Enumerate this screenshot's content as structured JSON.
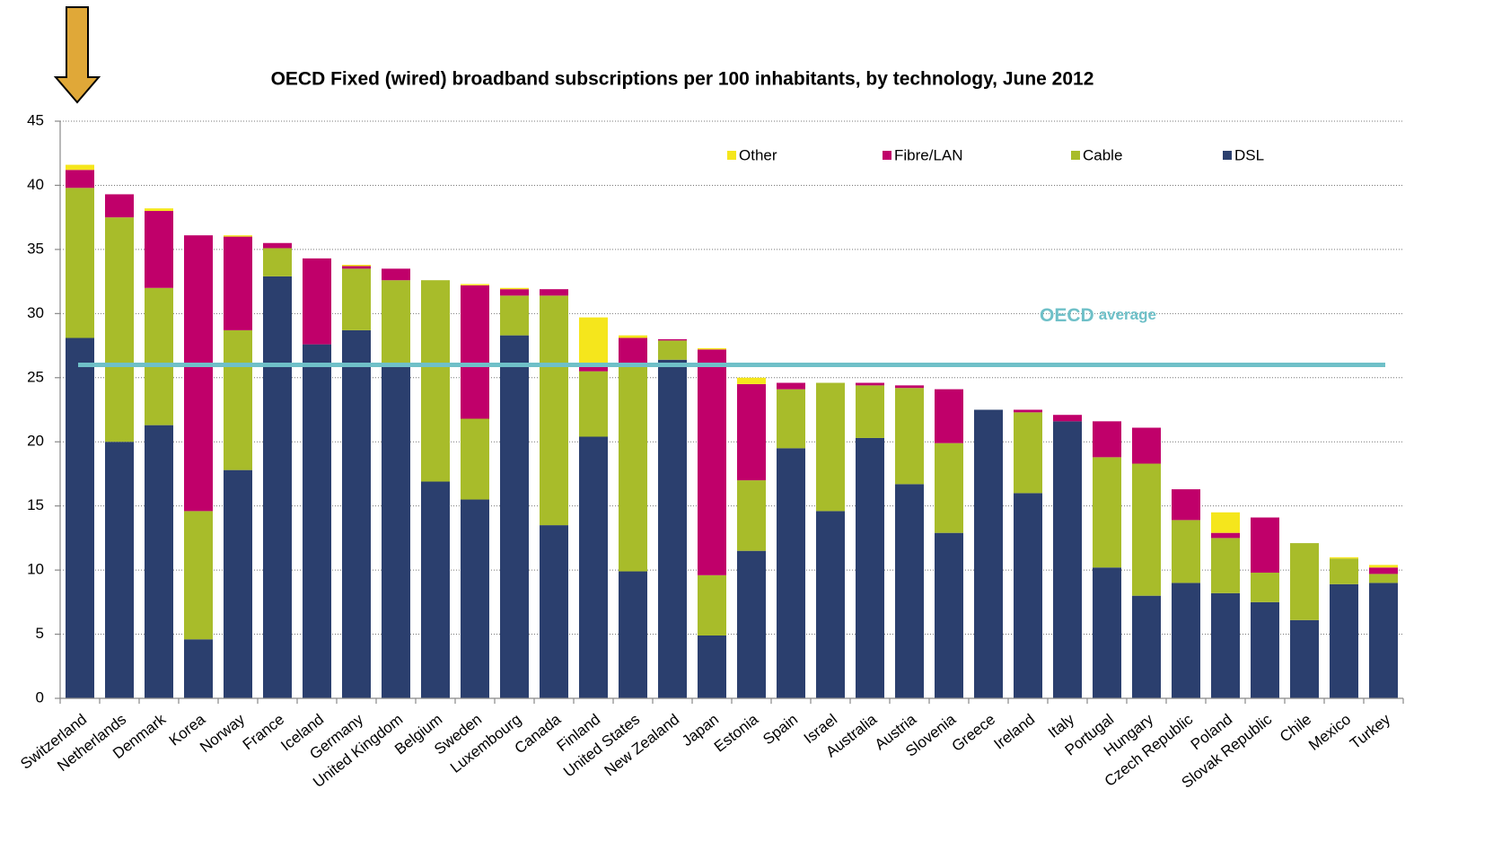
{
  "chart_data": {
    "type": "stacked_bar",
    "title": "OECD Fixed (wired) broadband subscriptions per 100 inhabitants, by technology, June 2012",
    "categories": [
      "Switzerland",
      "Netherlands",
      "Denmark",
      "Korea",
      "Norway",
      "France",
      "Iceland",
      "Germany",
      "United Kingdom",
      "Belgium",
      "Sweden",
      "Luxembourg",
      "Canada",
      "Finland",
      "United States",
      "New Zealand",
      "Japan",
      "Estonia",
      "Spain",
      "Israel",
      "Australia",
      "Austria",
      "Slovenia",
      "Greece",
      "Ireland",
      "Italy",
      "Portugal",
      "Hungary",
      "Czech Republic",
      "Poland",
      "Slovak Republic",
      "Chile",
      "Mexico",
      "Turkey"
    ],
    "series": [
      {
        "name": "DSL",
        "color": "#2b3f6e",
        "values": [
          28.1,
          20.0,
          21.3,
          4.6,
          17.8,
          32.9,
          27.6,
          28.7,
          26.0,
          16.9,
          15.5,
          28.3,
          13.5,
          20.4,
          9.9,
          26.4,
          4.9,
          11.5,
          19.5,
          14.6,
          20.3,
          16.7,
          12.9,
          22.5,
          16.0,
          21.6,
          10.2,
          8.0,
          9.0,
          8.2,
          7.5,
          6.1,
          8.9,
          9.0
        ]
      },
      {
        "name": "Cable",
        "color": "#a8bc2a",
        "values": [
          11.7,
          17.5,
          10.7,
          10.0,
          10.9,
          2.2,
          0,
          4.8,
          6.6,
          15.7,
          6.3,
          3.1,
          17.9,
          5.1,
          16.1,
          1.5,
          4.7,
          5.5,
          4.6,
          10.0,
          4.1,
          7.5,
          7.0,
          0,
          6.3,
          0,
          8.6,
          10.3,
          4.9,
          4.3,
          2.3,
          6.0,
          2.0,
          0.7
        ]
      },
      {
        "name": "Fibre/LAN",
        "color": "#c0006a",
        "values": [
          1.4,
          1.8,
          6.0,
          21.5,
          7.3,
          0.4,
          6.7,
          0.2,
          0.9,
          0,
          10.4,
          0.5,
          0.5,
          0.4,
          2.1,
          0.1,
          17.6,
          7.5,
          0.5,
          0,
          0.2,
          0.2,
          4.2,
          0,
          0.2,
          0.5,
          2.8,
          2.8,
          2.4,
          0.4,
          4.3,
          0,
          0,
          0.5
        ]
      },
      {
        "name": "Other",
        "color": "#f5e61c",
        "values": [
          0.4,
          0,
          0.2,
          0,
          0.1,
          0,
          0,
          0.1,
          0,
          0,
          0.1,
          0.1,
          0,
          3.8,
          0.2,
          0,
          0.1,
          0.5,
          0,
          0,
          0,
          0,
          0,
          0,
          0,
          0,
          0,
          0,
          0,
          1.6,
          0,
          0,
          0.1,
          0.2
        ]
      }
    ],
    "average": {
      "value": 26.0,
      "color": "#6fc0c8",
      "label": [
        "OECD",
        "average"
      ]
    },
    "ylim": [
      0,
      45
    ],
    "yticks": [
      0,
      5,
      10,
      15,
      20,
      25,
      30,
      35,
      40,
      45
    ],
    "grid": true,
    "legend": "top"
  }
}
